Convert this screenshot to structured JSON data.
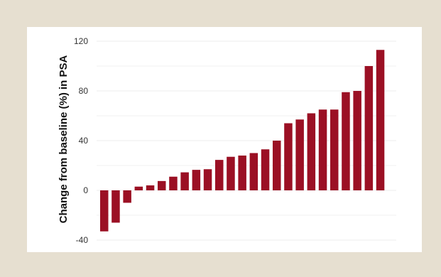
{
  "chart_data": {
    "type": "bar",
    "title": "",
    "xlabel": "",
    "ylabel": "Change from baseline (%) in PSA",
    "ylim": [
      -40,
      120
    ],
    "yticks": [
      -40,
      0,
      40,
      80,
      120
    ],
    "grid": true,
    "legend": "none",
    "values": [
      -33,
      -26,
      -10,
      3,
      4,
      7.5,
      11,
      14.5,
      16.5,
      17,
      24.5,
      27,
      28,
      30,
      33,
      40,
      54,
      57,
      62,
      65,
      65,
      79,
      80,
      100,
      113
    ],
    "bar_color": "#9b1024",
    "grid_color": "#ececec",
    "frame_background": "#e6dfd0"
  }
}
